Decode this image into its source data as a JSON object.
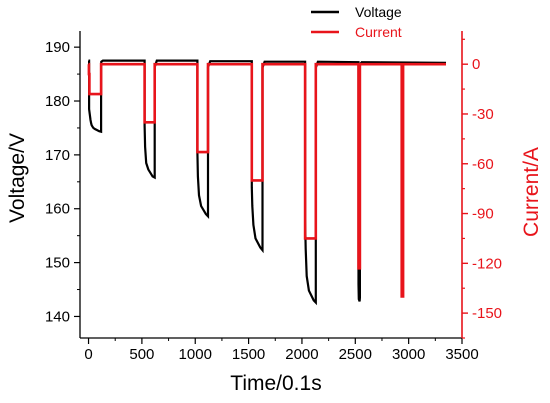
{
  "chart_data": {
    "type": "line",
    "title": "",
    "xlabel": "Time/0.1s",
    "ylabel_left": "Voltage/V",
    "ylabel_right": "Current/A",
    "xlim": [
      -80,
      3500
    ],
    "ylim_left": [
      136,
      193
    ],
    "ylim_right": [
      -165,
      20
    ],
    "x_ticks": [
      0,
      500,
      1000,
      1500,
      2000,
      2500,
      3000,
      3500
    ],
    "y_left_ticks": [
      140,
      150,
      160,
      170,
      180,
      190
    ],
    "y_right_ticks": [
      0,
      -30,
      -60,
      -90,
      -120,
      -150
    ],
    "grid": false,
    "legend_position": "top-right",
    "colors": {
      "voltage": "#000000",
      "current": "#e8141b",
      "axis": "#000000",
      "right_axis": "#e8141b"
    },
    "series": [
      {
        "name": "Voltage",
        "axis": "left",
        "x": [
          0,
          5,
          5,
          12,
          18,
          25,
          30,
          45,
          60,
          80,
          100,
          118,
          118,
          120,
          135,
          140,
          525,
          525,
          530,
          540,
          560,
          600,
          620,
          620,
          640,
          1020,
          1020,
          1025,
          1035,
          1055,
          1100,
          1120,
          1120,
          1140,
          1530,
          1530,
          1535,
          1545,
          1565,
          1610,
          1630,
          1630,
          1650,
          2030,
          2030,
          2035,
          2045,
          2065,
          2110,
          2130,
          2130,
          2150,
          2530,
          2530,
          2533,
          2540,
          2543,
          2543,
          2560,
          3350
        ],
        "y": [
          187.5,
          187.5,
          178.5,
          177.5,
          176.5,
          175.8,
          175.5,
          175.0,
          174.8,
          174.6,
          174.4,
          174.3,
          186.5,
          187.3,
          187.5,
          187.5,
          187.5,
          175.5,
          171.5,
          168.5,
          167.3,
          166.0,
          165.8,
          186.3,
          187.5,
          187.5,
          170.5,
          166.0,
          162.5,
          160.5,
          159.0,
          158.6,
          186.3,
          187.4,
          187.4,
          164.0,
          160.5,
          157.0,
          154.5,
          152.8,
          152.3,
          186.2,
          187.3,
          187.3,
          158.0,
          152.5,
          147.5,
          144.8,
          143.0,
          142.6,
          186.2,
          187.3,
          187.2,
          146.0,
          143.2,
          142.8,
          143.5,
          186.8,
          187.2,
          187.1
        ]
      },
      {
        "name": "Current",
        "axis": "right",
        "x": [
          0,
          3,
          3,
          8,
          8,
          118,
          118,
          525,
          525,
          620,
          620,
          1020,
          1020,
          1120,
          1120,
          1530,
          1530,
          1630,
          1630,
          2030,
          2030,
          2130,
          2130,
          2530,
          2530,
          2543,
          2543,
          2935,
          2935,
          2948,
          2948,
          3350
        ],
        "y": [
          0,
          0,
          -6,
          -6,
          -18,
          -18,
          0,
          0,
          -35,
          -35,
          0,
          0,
          -53,
          -53,
          0,
          0,
          -70,
          -70,
          0,
          0,
          -105,
          -105,
          0,
          0,
          -123,
          -123,
          0,
          0,
          -140,
          -140,
          0,
          0
        ]
      }
    ]
  }
}
